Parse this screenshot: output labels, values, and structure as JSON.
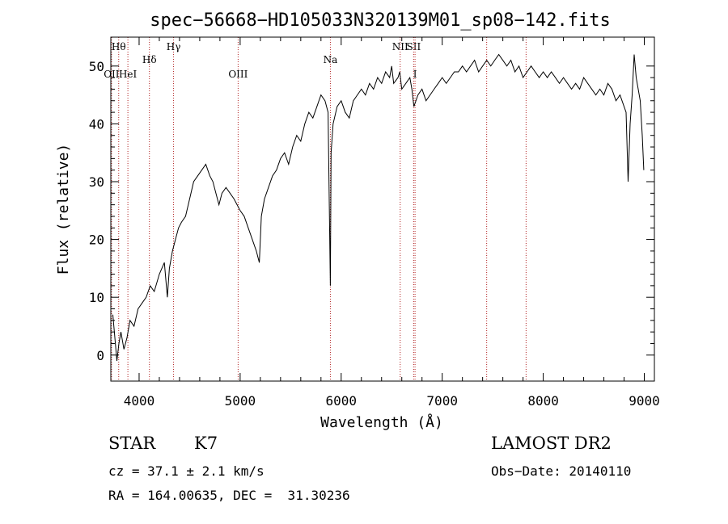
{
  "chart_data": {
    "type": "line",
    "title": "spec−56668−HD105033N320139M01_sp08−142.fits",
    "xlabel": "Wavelength (Å)",
    "ylabel": "Flux (relative)",
    "xlim": [
      3720,
      9100
    ],
    "ylim": [
      -4.5,
      55
    ],
    "xticks": [
      4000,
      5000,
      6000,
      7000,
      8000,
      9000
    ],
    "yticks": [
      0,
      10,
      20,
      30,
      40,
      50
    ],
    "grid": false,
    "series": [
      {
        "x": [
          3740,
          3760,
          3780,
          3800,
          3820,
          3850,
          3880,
          3910,
          3950,
          3990,
          4030,
          4070,
          4110,
          4150,
          4200,
          4250,
          4280,
          4300,
          4330,
          4360,
          4390,
          4420,
          4460,
          4500,
          4540,
          4580,
          4620,
          4660,
          4700,
          4730,
          4760,
          4790,
          4820,
          4860,
          4900,
          4940,
          4970,
          5000,
          5040,
          5080,
          5120,
          5160,
          5190,
          5210,
          5240,
          5280,
          5320,
          5360,
          5400,
          5440,
          5480,
          5520,
          5560,
          5600,
          5640,
          5680,
          5720,
          5760,
          5800,
          5840,
          5870,
          5893,
          5900,
          5920,
          5960,
          6000,
          6040,
          6080,
          6120,
          6160,
          6200,
          6240,
          6280,
          6320,
          6360,
          6400,
          6440,
          6480,
          6500,
          6520,
          6562,
          6580,
          6600,
          6640,
          6680,
          6700,
          6720,
          6760,
          6800,
          6840,
          6880,
          6920,
          6960,
          7000,
          7040,
          7080,
          7120,
          7160,
          7200,
          7240,
          7280,
          7320,
          7360,
          7400,
          7440,
          7480,
          7520,
          7560,
          7600,
          7640,
          7680,
          7720,
          7760,
          7800,
          7840,
          7880,
          7920,
          7960,
          8000,
          8040,
          8080,
          8120,
          8160,
          8200,
          8240,
          8280,
          8320,
          8360,
          8400,
          8440,
          8480,
          8520,
          8560,
          8600,
          8640,
          8680,
          8720,
          8760,
          8780,
          8800,
          8820,
          8840,
          8860,
          8880,
          8900,
          8920,
          8940,
          8960,
          8980,
          8995
        ],
        "y": [
          7,
          3,
          -1,
          2,
          4,
          1,
          3,
          6,
          5,
          8,
          9,
          10,
          12,
          11,
          14,
          16,
          10,
          15,
          18,
          20,
          22,
          23,
          24,
          27,
          30,
          31,
          32,
          33,
          31,
          30,
          28,
          26,
          28,
          29,
          28,
          27,
          26,
          25,
          24,
          22,
          20,
          18,
          16,
          24,
          27,
          29,
          31,
          32,
          34,
          35,
          33,
          36,
          38,
          37,
          40,
          42,
          41,
          43,
          45,
          44,
          42,
          12,
          35,
          40,
          43,
          44,
          42,
          41,
          44,
          45,
          46,
          45,
          47,
          46,
          48,
          47,
          49,
          48,
          50,
          47,
          48,
          49,
          46,
          47,
          48,
          46,
          43,
          45,
          46,
          44,
          45,
          46,
          47,
          48,
          47,
          48,
          49,
          49,
          50,
          49,
          50,
          51,
          49,
          50,
          51,
          50,
          51,
          52,
          51,
          50,
          51,
          49,
          50,
          48,
          49,
          50,
          49,
          48,
          49,
          48,
          49,
          48,
          47,
          48,
          47,
          46,
          47,
          46,
          48,
          47,
          46,
          45,
          46,
          45,
          47,
          46,
          44,
          45,
          44,
          43,
          42,
          30,
          40,
          45,
          52,
          48,
          46,
          44,
          38,
          32
        ]
      }
    ],
    "line_markers": [
      {
        "label": "OII",
        "x": 3727,
        "row": 3
      },
      {
        "label": "Hθ",
        "x": 3798,
        "row": 1
      },
      {
        "label": "HeI",
        "x": 3889,
        "row": 3
      },
      {
        "label": "Hδ",
        "x": 4102,
        "row": 2
      },
      {
        "label": "Hγ",
        "x": 4341,
        "row": 1
      },
      {
        "label": "OIII",
        "x": 4980,
        "row": 3
      },
      {
        "label": "Na",
        "x": 5893,
        "row": 2
      },
      {
        "label": "NII",
        "x": 6584,
        "row": 1
      },
      {
        "label": "SII",
        "x": 6717,
        "row": 1
      },
      {
        "label": "I",
        "x": 6731,
        "row": 3
      },
      {
        "label": "",
        "x": 7440,
        "row": 0
      },
      {
        "label": "",
        "x": 7830,
        "row": 0
      }
    ]
  },
  "info": {
    "class": "STAR",
    "subclass": "K7",
    "survey": "LAMOST DR2",
    "cz": "cz = 37.1 ± 2.1 km/s",
    "obs_date": "Obs−Date: 20140110",
    "coords": "RA = 164.00635, DEC =  31.30236"
  }
}
